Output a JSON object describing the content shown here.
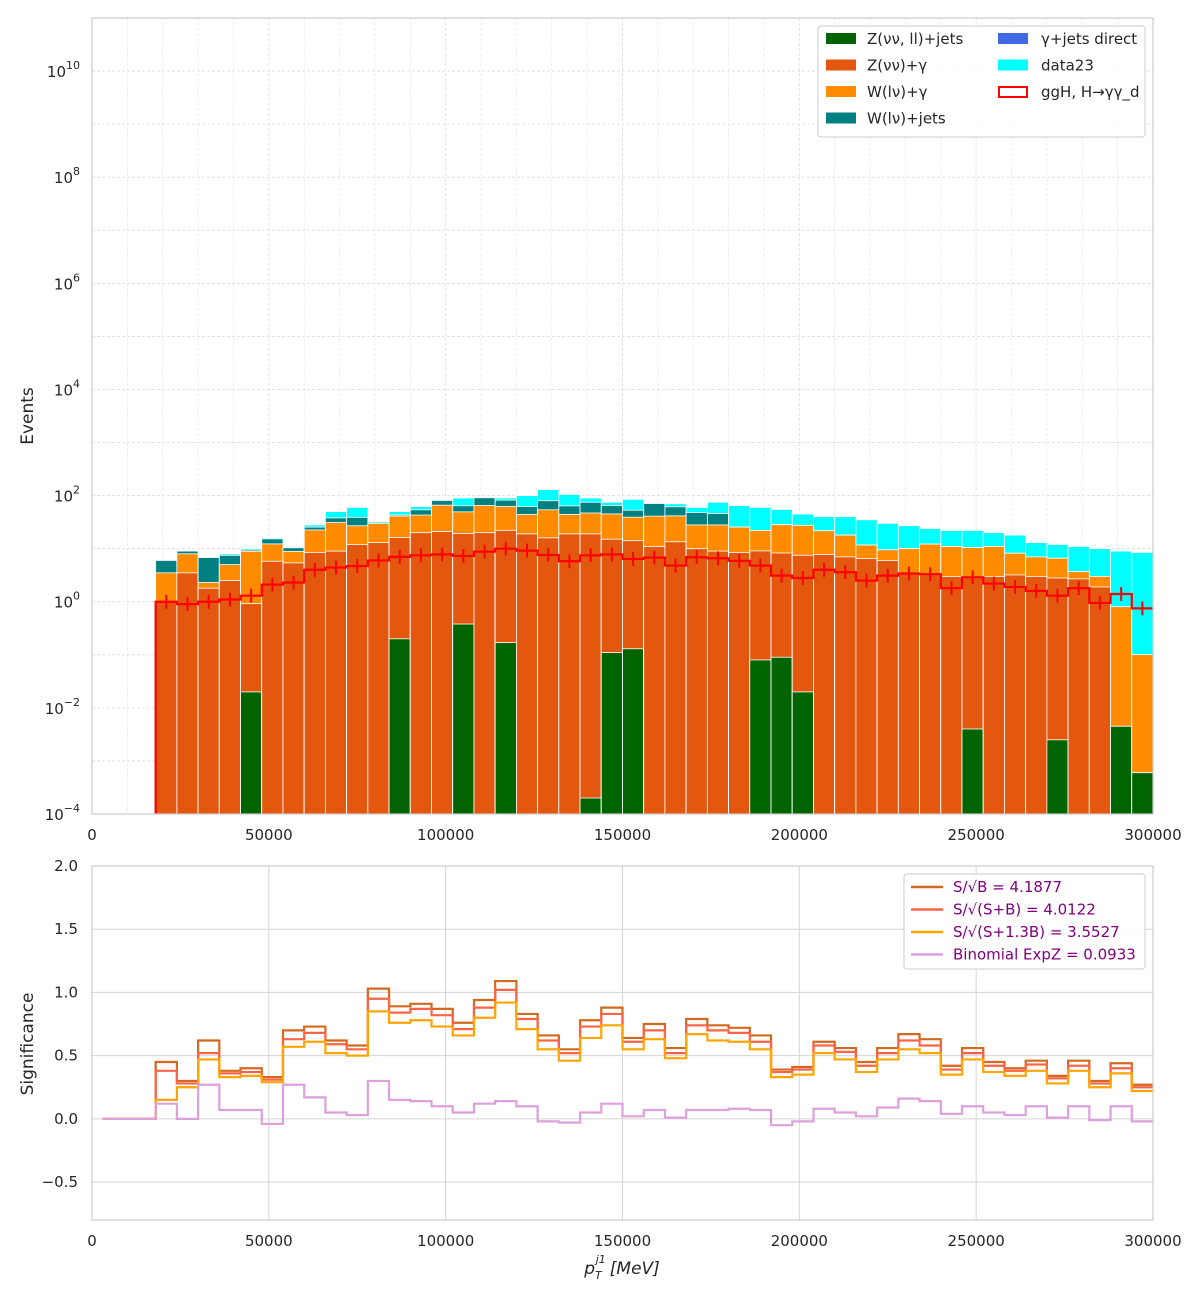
{
  "chart_data": [
    {
      "type": "histogram",
      "ylabel": "Events",
      "xlim": [
        0,
        300000
      ],
      "ylim": [
        0.0001,
        100000000000
      ],
      "yscale": "log",
      "grid": true,
      "x_ticks": [
        "0",
        "50000",
        "100000",
        "150000",
        "200000",
        "250000",
        "300000"
      ],
      "y_ticks": [
        {
          "base": "10",
          "exp": "−4",
          "value": 0.0001
        },
        {
          "base": "10",
          "exp": "−2",
          "value": 0.01
        },
        {
          "base": "10",
          "exp": "0",
          "value": 1
        },
        {
          "base": "10",
          "exp": "2",
          "value": 100
        },
        {
          "base": "10",
          "exp": "4",
          "value": 10000
        },
        {
          "base": "10",
          "exp": "6",
          "value": 1000000
        },
        {
          "base": "10",
          "exp": "8",
          "value": 100000000
        },
        {
          "base": "10",
          "exp": "10",
          "value": 10000000000
        }
      ],
      "bin_edges_start": 18000,
      "bin_width": 6000,
      "legend_position": "top-right",
      "stack_series": [
        {
          "name": "Z(νν, ll)+jets",
          "color": "#006400",
          "values": [
            0,
            0,
            0,
            0,
            0.02,
            0,
            0,
            0,
            0,
            0,
            0,
            0.2,
            0,
            0,
            0.38,
            0,
            0.17,
            0,
            0,
            0,
            0.0002,
            0.11,
            0.13,
            0,
            0,
            0,
            0,
            0,
            0.08,
            0.09,
            0.02,
            0,
            0,
            0,
            0,
            0,
            0,
            0,
            0.004,
            0,
            0,
            0,
            0.0025,
            0,
            0,
            0.0045,
            0.0006,
            0,
            0
          ]
        },
        {
          "name": "Z(νν)+γ",
          "color": "#e4570f",
          "values": [
            1.0,
            3.5,
            1.8,
            2.5,
            0.9,
            5.8,
            5.4,
            8.5,
            9.0,
            12,
            13,
            16,
            20,
            21,
            19,
            20,
            22,
            19,
            16,
            19,
            19,
            15,
            14,
            11,
            13.5,
            10,
            9,
            8.5,
            9,
            8.2,
            7.5,
            7.8,
            7,
            6.5,
            6,
            3.5,
            3.2,
            3,
            3,
            3,
            3.2,
            3,
            2.8,
            2.7,
            1.9
          ]
        },
        {
          "name": "W(lν)+γ",
          "color": "#ff8c00",
          "values": [
            2.5,
            4.5,
            0.5,
            2.5,
            8,
            6.5,
            3.5,
            14,
            22,
            15,
            17,
            25,
            23,
            45,
            30,
            45,
            40,
            25,
            38,
            25,
            28,
            30,
            25,
            30,
            28,
            18,
            19,
            17,
            13,
            20,
            20,
            14,
            11,
            5.2,
            3.5,
            6.5,
            9,
            8,
            7.5,
            8,
            5,
            4,
            3.8,
            1,
            1.1,
            0.8,
            0.1,
            1.1,
            0.2,
            0,
            0
          ]
        },
        {
          "name": "W(lν)+jets",
          "color": "#008080",
          "values": [
            2.5,
            1,
            4.5,
            2.5,
            0.5,
            3,
            1.5,
            3,
            7,
            12,
            0,
            2,
            11,
            15,
            15,
            26,
            20,
            18,
            26,
            20,
            28,
            20,
            14,
            30,
            20,
            20,
            18,
            0,
            0,
            0,
            0,
            0,
            0,
            0,
            0,
            0,
            0,
            0,
            0,
            0,
            0,
            0,
            0,
            0,
            0,
            0
          ]
        },
        {
          "name": "γ+jets direct",
          "color": "#4169e1",
          "values": []
        },
        {
          "name": "data23",
          "color": "#00ffff",
          "values": []
        }
      ],
      "total_stack": [
        6,
        9,
        7,
        8,
        10,
        16,
        10,
        28,
        50,
        60,
        32,
        50,
        62,
        80,
        90,
        80,
        90,
        100,
        130,
        105,
        90,
        75,
        85,
        70,
        70,
        60,
        75,
        65,
        60,
        55,
        45,
        40,
        40,
        35,
        30,
        27,
        24,
        22,
        22,
        20,
        18,
        13,
        12,
        11,
        10,
        9,
        8.5
      ],
      "signal": {
        "name": "ggH, H→γγ_d",
        "color": "#ff0000",
        "values": [
          1.0,
          0.9,
          1.0,
          1.1,
          1.3,
          2.1,
          2.3,
          4.0,
          4.4,
          4.7,
          6.0,
          7.0,
          7.5,
          7.8,
          7.3,
          8.8,
          10.0,
          9.2,
          7.6,
          5.8,
          7.5,
          7.8,
          6.4,
          6.8,
          4.8,
          6.9,
          6.6,
          5.9,
          4.8,
          3.1,
          2.8,
          4.0,
          3.6,
          2.5,
          3.1,
          3.4,
          3.3,
          1.8,
          2.9,
          2.2,
          1.9,
          1.6,
          1.3,
          1.8,
          0.95,
          1.4,
          0.75
        ]
      }
    },
    {
      "type": "step",
      "xlabel_main": "p",
      "xlabel_sub": "T",
      "xlabel_sup": "j1",
      "xlabel_unit": "[MeV]",
      "ylabel": "Significance",
      "xlim": [
        0,
        300000
      ],
      "ylim": [
        -0.8,
        2.0
      ],
      "grid": true,
      "x_ticks": [
        "0",
        "50000",
        "100000",
        "150000",
        "200000",
        "250000",
        "300000"
      ],
      "y_ticks": [
        "2.0",
        "1.5",
        "1.0",
        "0.5",
        "0.0",
        "−0.5"
      ],
      "legend_position": "top-right",
      "bin_edges_start": 18000,
      "bin_width": 6000,
      "series": [
        {
          "name": "S/√B = 4.1877",
          "color": "#d2691e",
          "values": [
            0.45,
            0.3,
            0.62,
            0.38,
            0.4,
            0.33,
            0.7,
            0.73,
            0.62,
            0.58,
            1.03,
            0.89,
            0.91,
            0.87,
            0.76,
            0.94,
            1.09,
            0.83,
            0.66,
            0.55,
            0.78,
            0.88,
            0.64,
            0.75,
            0.56,
            0.79,
            0.74,
            0.72,
            0.66,
            0.39,
            0.41,
            0.61,
            0.56,
            0.45,
            0.56,
            0.67,
            0.63,
            0.42,
            0.56,
            0.45,
            0.4,
            0.46,
            0.34,
            0.46,
            0.3,
            0.44,
            0.27
          ]
        },
        {
          "name": "S/√(S+B) = 4.0122",
          "color": "#ff6347",
          "values": [
            0.38,
            0.28,
            0.52,
            0.36,
            0.37,
            0.31,
            0.63,
            0.68,
            0.59,
            0.55,
            0.95,
            0.84,
            0.87,
            0.82,
            0.71,
            0.88,
            1.02,
            0.79,
            0.62,
            0.52,
            0.73,
            0.83,
            0.61,
            0.7,
            0.52,
            0.74,
            0.7,
            0.68,
            0.61,
            0.37,
            0.39,
            0.58,
            0.53,
            0.42,
            0.52,
            0.62,
            0.58,
            0.39,
            0.52,
            0.42,
            0.38,
            0.43,
            0.32,
            0.42,
            0.28,
            0.4,
            0.25
          ]
        },
        {
          "name": "S/√(S+1.3B) = 3.5527",
          "color": "#ffa500",
          "values": [
            0.15,
            0.25,
            0.47,
            0.33,
            0.34,
            0.29,
            0.57,
            0.61,
            0.52,
            0.5,
            0.85,
            0.76,
            0.78,
            0.73,
            0.66,
            0.8,
            0.92,
            0.71,
            0.55,
            0.46,
            0.64,
            0.74,
            0.55,
            0.63,
            0.48,
            0.67,
            0.62,
            0.61,
            0.55,
            0.33,
            0.35,
            0.52,
            0.47,
            0.37,
            0.47,
            0.55,
            0.52,
            0.35,
            0.47,
            0.37,
            0.34,
            0.38,
            0.28,
            0.38,
            0.25,
            0.36,
            0.22
          ]
        },
        {
          "name": "Binomial ExpZ = 0.0933",
          "color": "#dda0dd",
          "values": [
            0.12,
            0.0,
            0.27,
            0.07,
            0.07,
            -0.04,
            0.27,
            0.17,
            0.05,
            0.03,
            0.3,
            0.15,
            0.14,
            0.1,
            0.05,
            0.12,
            0.14,
            0.1,
            -0.02,
            -0.03,
            0.05,
            0.12,
            0.02,
            0.07,
            0.01,
            0.07,
            0.07,
            0.08,
            0.07,
            -0.05,
            -0.02,
            0.08,
            0.05,
            0.02,
            0.09,
            0.16,
            0.14,
            0.04,
            0.1,
            0.05,
            0.03,
            0.1,
            0.01,
            0.1,
            -0.01,
            0.1,
            -0.02
          ]
        }
      ],
      "lead_zero_start": 3000
    }
  ]
}
